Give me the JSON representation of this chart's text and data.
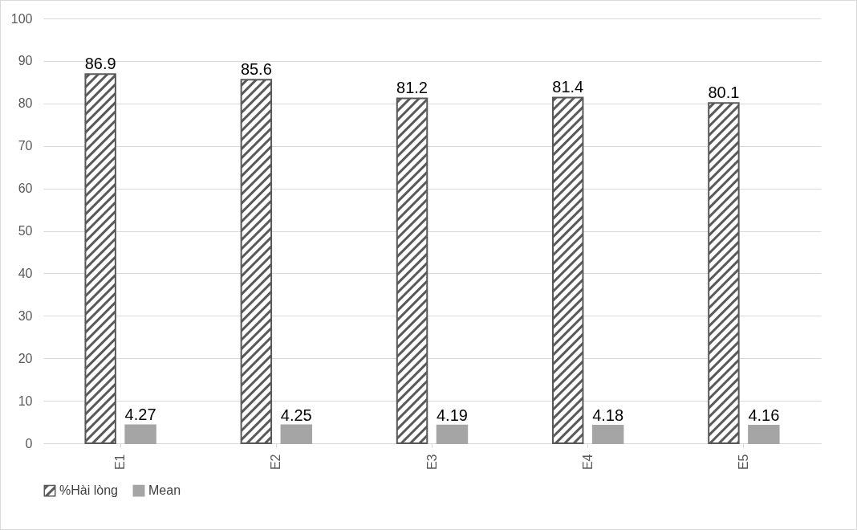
{
  "chart_data": {
    "type": "bar",
    "categories": [
      "E1",
      "E2",
      "E3",
      "E4",
      "E5"
    ],
    "series": [
      {
        "name": "%Hài lòng",
        "color": "#595959",
        "values": [
          86.9,
          85.6,
          81.2,
          81.4,
          80.1
        ]
      },
      {
        "name": "Mean",
        "color": "#a5a5a5",
        "values": [
          4.27,
          4.25,
          4.19,
          4.18,
          4.16
        ]
      }
    ],
    "ylim": [
      0,
      100
    ],
    "yticks": [
      0,
      10,
      20,
      30,
      40,
      50,
      60,
      70,
      80,
      90,
      100
    ],
    "grid": "y",
    "legend": "bottom",
    "data_labels": true
  }
}
